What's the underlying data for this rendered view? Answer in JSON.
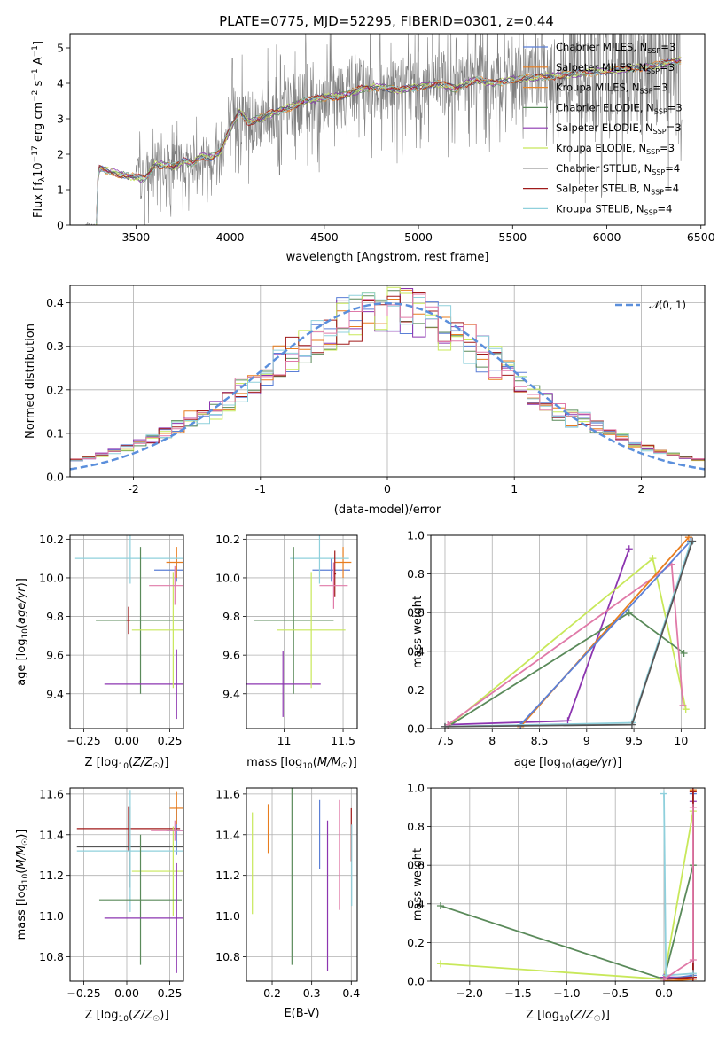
{
  "figure": {
    "title": "PLATE=0775, MJD=52295, FIBERID=0301, z=0.44"
  },
  "colors": {
    "Chabrier MILES": "#5b7fd6",
    "Salpeter MILES": "#e87d1e",
    "Kroupa MILES": "#e8862a",
    "Chabrier ELODIE": "#5a8a5a",
    "Salpeter ELODIE": "#8c35b0",
    "Kroupa ELODIE": "#c8e85a",
    "Chabrier STELIB": "#555555",
    "Salpeter STELIB": "#a01a1a",
    "Kroupa STELIB": "#8fd0dc",
    "extra_pink": "#e07aa8",
    "normal_curve": "#5b8fdc",
    "data_spectrum": "#808080"
  },
  "chart_data": [
    {
      "type": "line",
      "id": "spectrum",
      "xlabel": "wavelength [Angstrom, rest frame]",
      "ylabel": "Flux [f_λ 10^-17 erg cm^-2 s^-1 A^-1]",
      "xlim": [
        3150,
        6520
      ],
      "ylim": [
        0,
        5.4
      ],
      "xticks": [
        3500,
        4000,
        4500,
        5000,
        5500,
        6000,
        6500
      ],
      "yticks": [
        0,
        1,
        2,
        3,
        4,
        5
      ],
      "grid": false,
      "legend_position": "top-right",
      "legend": [
        "Chabrier MILES, N_SSP=3",
        "Salpeter MILES, N_SSP=3",
        "Kroupa MILES, N_SSP=3",
        "Chabrier ELODIE, N_SSP=3",
        "Salpeter ELODIE, N_SSP=3",
        "Kroupa ELODIE, N_SSP=3",
        "Chabrier STELIB, N_SSP=4",
        "Salpeter STELIB, N_SSP=4",
        "Kroupa STELIB, N_SSP=4"
      ],
      "data_spectrum_x_range": [
        3230,
        6400
      ],
      "model_points": {
        "x": [
          3290,
          3300,
          3400,
          3500,
          3550,
          3600,
          3650,
          3700,
          3750,
          3800,
          3850,
          3900,
          3950,
          4000,
          4050,
          4100,
          4200,
          4300,
          4400,
          4500,
          4600,
          4700,
          4800,
          4900,
          5000,
          5100,
          5200,
          5300,
          5400,
          5500,
          5600,
          5700,
          5800,
          5900,
          6000,
          6100,
          6200,
          6300,
          6400
        ],
        "y": [
          0,
          1.6,
          1.45,
          1.35,
          1.3,
          1.7,
          1.7,
          1.65,
          1.8,
          1.75,
          1.95,
          1.9,
          2.1,
          2.7,
          3.2,
          2.9,
          3.1,
          3.3,
          3.5,
          3.6,
          3.65,
          3.85,
          3.9,
          3.8,
          3.9,
          4.0,
          3.85,
          4.1,
          4.0,
          4.1,
          4.15,
          4.2,
          4.25,
          4.3,
          4.35,
          4.4,
          4.45,
          4.55,
          4.65
        ]
      }
    },
    {
      "type": "line",
      "id": "residuals",
      "xlabel": "(data-model)/error",
      "ylabel": "Normed distribution",
      "xlim": [
        -2.5,
        2.5
      ],
      "ylim": [
        0,
        0.44
      ],
      "xticks": [
        -2,
        -1,
        0,
        1,
        2
      ],
      "yticks": [
        0.0,
        0.1,
        0.2,
        0.3,
        0.4
      ],
      "grid": true,
      "legend": [
        "𝒩(0,1)"
      ],
      "legend_position": "top-right"
    },
    {
      "type": "scatter",
      "id": "age_vs_Z",
      "xlabel": "Z [log10(Z/Z☉)]",
      "ylabel": "age [log10(age/yr)]",
      "xlim": [
        -0.33,
        0.33
      ],
      "ylim": [
        9.22,
        10.22
      ],
      "xticks": [
        -0.25,
        0,
        0.25
      ],
      "xtick_labels": [
        "−0.25",
        "0.00",
        "0.25"
      ],
      "yticks": [
        9.4,
        9.6,
        9.8,
        10.0,
        10.2
      ],
      "grid": true,
      "crosses": [
        {
          "s": "Chabrier MILES",
          "x": 0.29,
          "y": 10.04,
          "ex": 0.13,
          "ey": 0.06
        },
        {
          "s": "Salpeter MILES",
          "x": 0.29,
          "y": 10.08,
          "ex": 0.06,
          "ey": 0.08
        },
        {
          "s": "Kroupa STELIB",
          "x": 0.02,
          "y": 10.1,
          "ex": 0.32,
          "ey": 0.13
        },
        {
          "s": "Chabrier ELODIE",
          "x": 0.08,
          "y": 9.78,
          "ex": 0.26,
          "ey": 0.38
        },
        {
          "s": "Salpeter ELODIE",
          "x": 0.29,
          "y": 9.45,
          "ex": 0.42,
          "ey": 0.18
        },
        {
          "s": "Kroupa ELODIE",
          "x": 0.27,
          "y": 9.73,
          "ex": 0.24,
          "ey": 0.3
        },
        {
          "s": "Salpeter STELIB",
          "x": 0.01,
          "y": 9.78,
          "ex": 0.01,
          "ey": 0.07
        },
        {
          "s": "extra_pink",
          "x": 0.28,
          "y": 9.96,
          "ex": 0.15,
          "ey": 0.1
        }
      ]
    },
    {
      "type": "scatter",
      "id": "age_vs_mass",
      "xlabel": "mass [log10(M/M☉)]",
      "ylabel": "",
      "xlim": [
        10.68,
        11.62
      ],
      "ylim": [
        9.22,
        10.22
      ],
      "xticks": [
        11.0,
        11.5
      ],
      "yticks": [
        9.4,
        9.6,
        9.8,
        10.0,
        10.2
      ],
      "grid": true,
      "crosses": [
        {
          "s": "Chabrier MILES",
          "x": 11.4,
          "y": 10.04,
          "ex": 0.16,
          "ey": 0.06
        },
        {
          "s": "Salpeter MILES",
          "x": 11.5,
          "y": 10.08,
          "ex": 0.07,
          "ey": 0.08
        },
        {
          "s": "Kroupa STELIB",
          "x": 11.3,
          "y": 10.1,
          "ex": 0.25,
          "ey": 0.13
        },
        {
          "s": "Chabrier ELODIE",
          "x": 11.08,
          "y": 9.78,
          "ex": 0.34,
          "ey": 0.38
        },
        {
          "s": "Salpeter ELODIE",
          "x": 10.99,
          "y": 9.45,
          "ex": 0.32,
          "ey": 0.17
        },
        {
          "s": "Kroupa ELODIE",
          "x": 11.23,
          "y": 9.73,
          "ex": 0.29,
          "ey": 0.3
        },
        {
          "s": "Salpeter STELIB",
          "x": 11.43,
          "y": 10.02,
          "ex": 0.01,
          "ey": 0.12
        },
        {
          "s": "extra_pink",
          "x": 11.42,
          "y": 9.96,
          "ex": 0.12,
          "ey": 0.12
        }
      ]
    },
    {
      "type": "line",
      "id": "massweight_vs_age",
      "xlabel": "age [log10(age/yr)]",
      "ylabel": "mass weight",
      "xlim": [
        7.35,
        10.25
      ],
      "ylim": [
        0,
        1.0
      ],
      "xticks": [
        7.5,
        8.0,
        8.5,
        9.0,
        9.5,
        10.0
      ],
      "yticks": [
        0.0,
        0.2,
        0.4,
        0.6,
        0.8,
        1.0
      ],
      "grid": true,
      "series": [
        {
          "s": "Salpeter ELODIE",
          "x": [
            7.53,
            8.8,
            9.45
          ],
          "y": [
            0.02,
            0.04,
            0.93
          ]
        },
        {
          "s": "Kroupa ELODIE",
          "x": [
            7.53,
            9.7,
            10.05
          ],
          "y": [
            0.01,
            0.88,
            0.1
          ]
        },
        {
          "s": "Chabrier ELODIE",
          "x": [
            7.53,
            9.45,
            10.03
          ],
          "y": [
            0.01,
            0.6,
            0.39
          ]
        },
        {
          "s": "extra_pink",
          "x": [
            7.53,
            9.9,
            10.02
          ],
          "y": [
            0.02,
            0.85,
            0.12
          ]
        },
        {
          "s": "Salpeter MILES",
          "x": [
            8.3,
            10.08
          ],
          "y": [
            0.01,
            0.99
          ]
        },
        {
          "s": "Chabrier MILES",
          "x": [
            8.3,
            10.1
          ],
          "y": [
            0.02,
            0.97
          ]
        },
        {
          "s": "Kroupa STELIB",
          "x": [
            7.5,
            9.48,
            10.1
          ],
          "y": [
            0.01,
            0.03,
            0.96
          ]
        },
        {
          "s": "Chabrier STELIB",
          "x": [
            7.5,
            9.48,
            10.12
          ],
          "y": [
            0.01,
            0.02,
            0.97
          ]
        }
      ]
    },
    {
      "type": "scatter",
      "id": "mass_vs_Z",
      "xlabel": "Z [log10(Z/Z☉)]",
      "ylabel": "mass [log10(M/M☉)]",
      "xlim": [
        -0.33,
        0.33
      ],
      "ylim": [
        10.68,
        11.63
      ],
      "xticks": [
        -0.25,
        0,
        0.25
      ],
      "xtick_labels": [
        "−0.25",
        "0.00",
        "0.25"
      ],
      "yticks": [
        10.8,
        11.0,
        11.2,
        11.4,
        11.6
      ],
      "grid": true,
      "crosses": [
        {
          "s": "Chabrier MILES",
          "x": 0.29,
          "y": 11.42,
          "ex": 0.06,
          "ey": 0.12
        },
        {
          "s": "Salpeter MILES",
          "x": 0.29,
          "y": 11.53,
          "ex": 0.04,
          "ey": 0.08
        },
        {
          "s": "Salpeter STELIB",
          "x": 0.01,
          "y": 11.43,
          "ex": 0.3,
          "ey": 0.11
        },
        {
          "s": "Chabrier STELIB",
          "x": 0.02,
          "y": 11.34,
          "ex": 0.31,
          "ey": 0.2
        },
        {
          "s": "Kroupa STELIB",
          "x": 0.02,
          "y": 11.32,
          "ex": 0.31,
          "ey": 0.3
        },
        {
          "s": "Kroupa ELODIE",
          "x": 0.27,
          "y": 11.22,
          "ex": 0.24,
          "ey": 0.22
        },
        {
          "s": "Chabrier ELODIE",
          "x": 0.08,
          "y": 11.08,
          "ex": 0.24,
          "ey": 0.32
        },
        {
          "s": "Salpeter ELODIE",
          "x": 0.29,
          "y": 10.99,
          "ex": 0.42,
          "ey": 0.27
        },
        {
          "s": "extra_pink",
          "x": 0.28,
          "y": 11.42,
          "ex": 0.14,
          "ey": 0.05
        }
      ]
    },
    {
      "type": "scatter",
      "id": "mass_vs_ebv",
      "xlabel": "E(B-V)",
      "ylabel": "",
      "xlim": [
        0.135,
        0.415
      ],
      "ylim": [
        10.68,
        11.63
      ],
      "xticks": [
        0.2,
        0.3,
        0.4
      ],
      "yticks": [
        10.8,
        11.0,
        11.2,
        11.4,
        11.6
      ],
      "grid": true,
      "bars": [
        {
          "s": "Kroupa ELODIE",
          "x": 0.15,
          "y": 11.26,
          "ey": 0.25
        },
        {
          "s": "Salpeter MILES",
          "x": 0.19,
          "y": 11.43,
          "ey": 0.12
        },
        {
          "s": "Chabrier ELODIE",
          "x": 0.25,
          "y": 11.2,
          "ey": 0.44
        },
        {
          "s": "Chabrier MILES",
          "x": 0.32,
          "y": 11.4,
          "ey": 0.17
        },
        {
          "s": "Salpeter ELODIE",
          "x": 0.34,
          "y": 11.1,
          "ey": 0.37
        },
        {
          "s": "extra_pink",
          "x": 0.37,
          "y": 11.3,
          "ey": 0.27
        },
        {
          "s": "Salpeter STELIB",
          "x": 0.4,
          "y": 11.4,
          "ey": 0.13
        },
        {
          "s": "Kroupa STELIB",
          "x": 0.401,
          "y": 11.25,
          "ey": 0.2
        }
      ]
    },
    {
      "type": "line",
      "id": "massweight_vs_Z",
      "xlabel": "Z [log10(Z/Z☉)]",
      "ylabel": "mass weight",
      "xlim": [
        -2.4,
        0.42
      ],
      "ylim": [
        0,
        1.0
      ],
      "xticks": [
        -2.0,
        -1.5,
        -1.0,
        -0.5,
        0.0
      ],
      "xtick_labels": [
        "−2.0",
        "−1.5",
        "−1.0",
        "−0.5",
        "0.0"
      ],
      "yticks": [
        0.0,
        0.2,
        0.4,
        0.6,
        0.8,
        1.0
      ],
      "grid": true,
      "series": [
        {
          "s": "Chabrier ELODIE",
          "x": [
            -2.3,
            0.0,
            0.3
          ],
          "y": [
            0.39,
            0.01,
            0.6
          ]
        },
        {
          "s": "Kroupa ELODIE",
          "x": [
            -2.3,
            0.0,
            0.3
          ],
          "y": [
            0.09,
            0.01,
            0.88
          ]
        },
        {
          "s": "Salpeter ELODIE",
          "x": [
            0.0,
            0.3,
            0.3
          ],
          "y": [
            0.02,
            0.02,
            0.93
          ]
        },
        {
          "s": "Salpeter MILES",
          "x": [
            0.0,
            0.3,
            0.3
          ],
          "y": [
            0.0,
            0.01,
            0.99
          ]
        },
        {
          "s": "Chabrier MILES",
          "x": [
            0.0,
            0.3,
            0.3
          ],
          "y": [
            0.01,
            0.03,
            0.97
          ]
        },
        {
          "s": "Salpeter STELIB",
          "x": [
            0.0,
            0.3,
            0.3
          ],
          "y": [
            0.01,
            0.02,
            0.98
          ]
        },
        {
          "s": "Kroupa STELIB",
          "x": [
            0.0,
            0.02,
            0.3
          ],
          "y": [
            0.97,
            0.03,
            0.04
          ]
        },
        {
          "s": "extra_pink",
          "x": [
            0.0,
            0.3,
            0.3
          ],
          "y": [
            0.01,
            0.11,
            0.9
          ]
        }
      ]
    }
  ]
}
